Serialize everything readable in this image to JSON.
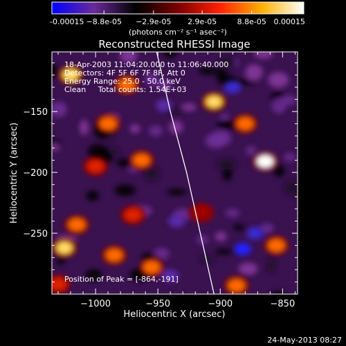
{
  "chart_data": {
    "type": "heatmap",
    "title": "Reconstructed RHESSI Image",
    "xlabel": "Heliocentric X (arcsec)",
    "ylabel": "Heliocentric Y (arcsec)",
    "xlim": [
      -1035,
      -838
    ],
    "ylim": [
      -300,
      -101
    ],
    "xticks": [
      -1000,
      -950,
      -900,
      -850
    ],
    "xtick_labels": [
      "−1000",
      "−950",
      "−900",
      "−850"
    ],
    "yticks": [
      -250,
      -200,
      -150
    ],
    "ytick_labels": [
      "−250",
      "−200",
      "−150"
    ],
    "colorbar": {
      "ticks": [
        -0.00015,
        -8.8e-05,
        -2.9e-05,
        2.9e-05,
        8.8e-05,
        0.00015
      ],
      "tick_labels": [
        "-0.00015",
        "−8.8e-05",
        "−2.9e-05",
        "2.9e-05",
        "8.8e-05",
        "0.00015"
      ],
      "unit_label": "(photons cm⁻² s⁻¹ asec⁻²)",
      "colors": [
        "#0000ff",
        "#6a2a9a",
        "#000000",
        "#7a0000",
        "#ff2000",
        "#ffb000",
        "#ffffff"
      ]
    },
    "annotations": [
      "18-Apr-2003 11:04:20.000 to 11:06:40.000",
      "Detectors: 4F 5F 6F 7F 8F, Att 0",
      "Energy Range: 25.0 - 50.0 keV",
      "Clean     Total counts: 1.54E+03"
    ],
    "peak_label": "Position of Peak = [-864,-191]",
    "peak": [
      -864,
      -191
    ],
    "limb_curve": [
      [
        -951,
        -101
      ],
      [
        -940,
        -150
      ],
      [
        -927,
        -200
      ],
      [
        -916,
        -250
      ],
      [
        -905,
        -300
      ]
    ],
    "bright_sources": [
      {
        "x": -1020,
        "y": -120,
        "v": 0.9
      },
      {
        "x": -975,
        "y": -128,
        "v": 0.8
      },
      {
        "x": -990,
        "y": -160,
        "v": 0.8
      },
      {
        "x": -1000,
        "y": -195,
        "v": 0.65
      },
      {
        "x": -963,
        "y": -190,
        "v": 0.75
      },
      {
        "x": -1015,
        "y": -243,
        "v": 0.7
      },
      {
        "x": -970,
        "y": -235,
        "v": 0.6
      },
      {
        "x": -1025,
        "y": -262,
        "v": 0.9
      },
      {
        "x": -985,
        "y": -268,
        "v": 0.7
      },
      {
        "x": -955,
        "y": -278,
        "v": 0.8
      },
      {
        "x": -905,
        "y": -142,
        "v": 0.85
      },
      {
        "x": -880,
        "y": -160,
        "v": 0.8
      },
      {
        "x": -864,
        "y": -191,
        "v": 1.0
      },
      {
        "x": -915,
        "y": -233,
        "v": 0.5
      },
      {
        "x": -855,
        "y": -260,
        "v": 0.75
      },
      {
        "x": -887,
        "y": -293,
        "v": 0.8
      },
      {
        "x": -1030,
        "y": -292,
        "v": 0.65
      }
    ],
    "dim_sources": [
      {
        "x": -945,
        "y": -145,
        "v": -0.4
      },
      {
        "x": -890,
        "y": -130,
        "v": -0.7
      },
      {
        "x": -935,
        "y": -240,
        "v": -0.4
      },
      {
        "x": -882,
        "y": -263,
        "v": -0.9
      },
      {
        "x": -872,
        "y": -250,
        "v": -0.7
      },
      {
        "x": -940,
        "y": -285,
        "v": -0.4
      }
    ]
  },
  "footer": {
    "timestamp": "24-May-2013 08:27"
  }
}
